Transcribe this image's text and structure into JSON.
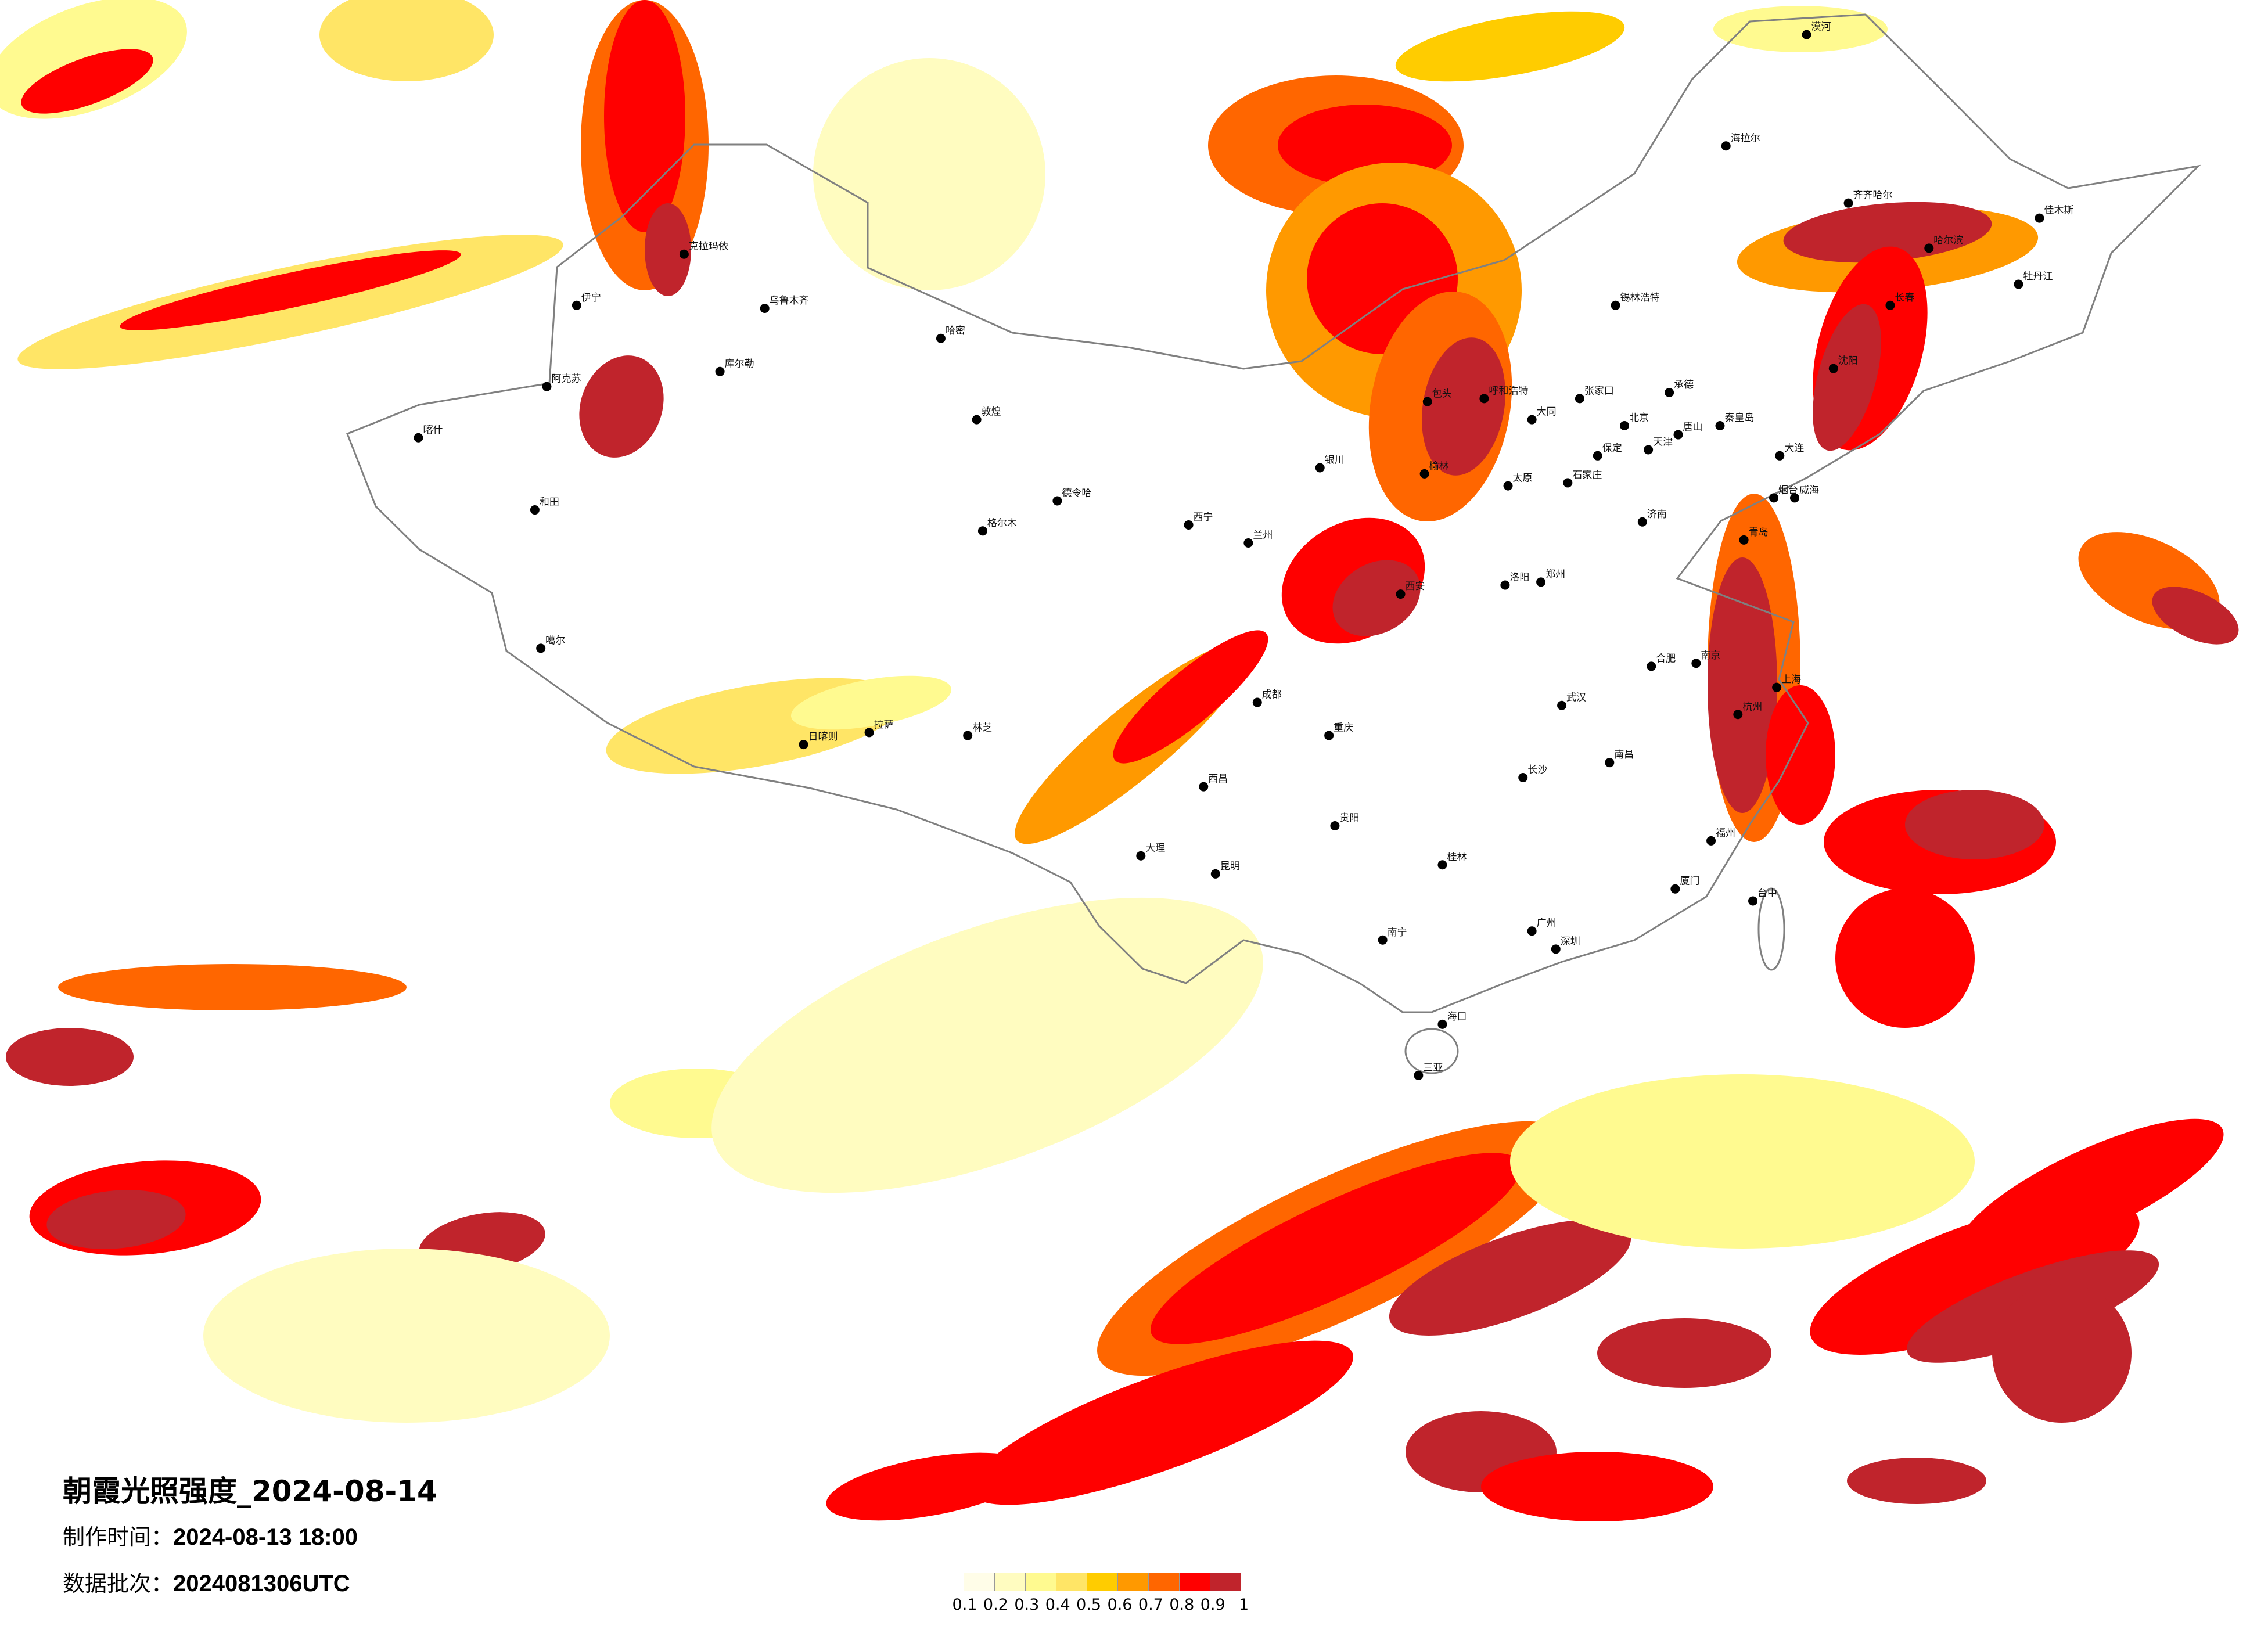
{
  "title": "朝霞光照强度_2024-08-14",
  "meta": {
    "made_label": "制作时间：",
    "made_value": "2024-08-13 18:00",
    "batch_label": "数据批次：",
    "batch_value": "2024081306UTC"
  },
  "legend": {
    "colors": [
      "#fffde8",
      "#fffcc0",
      "#fffa90",
      "#ffe566",
      "#ffcc00",
      "#ff9900",
      "#ff6600",
      "#ff0000",
      "#c0242c"
    ],
    "ticks": [
      "0.1",
      "0.2",
      "0.3",
      "0.4",
      "0.5",
      "0.6",
      "0.7",
      "0.8",
      "0.9",
      "1"
    ]
  },
  "border_color": "#808080",
  "cities": [
    {
      "name": "北京",
      "lon": 116.4,
      "lat": 39.9
    },
    {
      "name": "天津",
      "lon": 117.2,
      "lat": 39.1
    },
    {
      "name": "石家庄",
      "lon": 114.5,
      "lat": 38.0
    },
    {
      "name": "张家口",
      "lon": 114.9,
      "lat": 40.8
    },
    {
      "name": "保定",
      "lon": 115.5,
      "lat": 38.9
    },
    {
      "name": "唐山",
      "lon": 118.2,
      "lat": 39.6
    },
    {
      "name": "秦皇岛",
      "lon": 119.6,
      "lat": 39.9
    },
    {
      "name": "承德",
      "lon": 117.9,
      "lat": 41.0
    },
    {
      "name": "大同",
      "lon": 113.3,
      "lat": 40.1
    },
    {
      "name": "太原",
      "lon": 112.5,
      "lat": 37.9
    },
    {
      "name": "呼和浩特",
      "lon": 111.7,
      "lat": 40.8
    },
    {
      "name": "济南",
      "lon": 117.0,
      "lat": 36.7
    },
    {
      "name": "青岛",
      "lon": 120.4,
      "lat": 36.1
    },
    {
      "name": "烟台",
      "lon": 121.4,
      "lat": 37.5
    },
    {
      "name": "威海",
      "lon": 122.1,
      "lat": 37.5
    },
    {
      "name": "大连",
      "lon": 121.6,
      "lat": 38.9
    },
    {
      "name": "沈阳",
      "lon": 123.4,
      "lat": 41.8
    },
    {
      "name": "长春",
      "lon": 125.3,
      "lat": 43.9
    },
    {
      "name": "哈尔滨",
      "lon": 126.6,
      "lat": 45.8
    },
    {
      "name": "齐齐哈尔",
      "lon": 123.9,
      "lat": 47.3
    },
    {
      "name": "海拉尔",
      "lon": 119.8,
      "lat": 49.2
    },
    {
      "name": "漠河",
      "lon": 122.5,
      "lat": 52.9
    },
    {
      "name": "佳木斯",
      "lon": 130.3,
      "lat": 46.8
    },
    {
      "name": "牡丹江",
      "lon": 129.6,
      "lat": 44.6
    },
    {
      "name": "郑州",
      "lon": 113.6,
      "lat": 34.7
    },
    {
      "name": "洛阳",
      "lon": 112.4,
      "lat": 34.6
    },
    {
      "name": "西安",
      "lon": 108.9,
      "lat": 34.3
    },
    {
      "name": "兰州",
      "lon": 103.8,
      "lat": 36.0
    },
    {
      "name": "西宁",
      "lon": 101.8,
      "lat": 36.6
    },
    {
      "name": "银川",
      "lon": 106.2,
      "lat": 38.5
    },
    {
      "name": "武汉",
      "lon": 114.3,
      "lat": 30.6
    },
    {
      "name": "长沙",
      "lon": 113.0,
      "lat": 28.2
    },
    {
      "name": "南昌",
      "lon": 115.9,
      "lat": 28.7
    },
    {
      "name": "合肥",
      "lon": 117.3,
      "lat": 31.9
    },
    {
      "name": "南京",
      "lon": 118.8,
      "lat": 32.0
    },
    {
      "name": "上海",
      "lon": 121.5,
      "lat": 31.2
    },
    {
      "name": "杭州",
      "lon": 120.2,
      "lat": 30.3
    },
    {
      "name": "福州",
      "lon": 119.3,
      "lat": 26.1
    },
    {
      "name": "厦门",
      "lon": 118.1,
      "lat": 24.5
    },
    {
      "name": "台中",
      "lon": 120.7,
      "lat": 24.1
    },
    {
      "name": "广州",
      "lon": 113.3,
      "lat": 23.1
    },
    {
      "name": "深圳",
      "lon": 114.1,
      "lat": 22.5
    },
    {
      "name": "南宁",
      "lon": 108.3,
      "lat": 22.8
    },
    {
      "name": "桂林",
      "lon": 110.3,
      "lat": 25.3
    },
    {
      "name": "海口",
      "lon": 110.3,
      "lat": 20.0
    },
    {
      "name": "三亚",
      "lon": 109.5,
      "lat": 18.3
    },
    {
      "name": "贵阳",
      "lon": 106.7,
      "lat": 26.6
    },
    {
      "name": "昆明",
      "lon": 102.7,
      "lat": 25.0
    },
    {
      "name": "大理",
      "lon": 100.2,
      "lat": 25.6
    },
    {
      "name": "成都",
      "lon": 104.1,
      "lat": 30.7
    },
    {
      "name": "重庆",
      "lon": 106.5,
      "lat": 29.6
    },
    {
      "name": "西昌",
      "lon": 102.3,
      "lat": 27.9
    },
    {
      "name": "拉萨",
      "lon": 91.1,
      "lat": 29.7
    },
    {
      "name": "日喀则",
      "lon": 88.9,
      "lat": 29.3
    },
    {
      "name": "林芝",
      "lon": 94.4,
      "lat": 29.6
    },
    {
      "name": "格尔木",
      "lon": 94.9,
      "lat": 36.4
    },
    {
      "name": "德令哈",
      "lon": 97.4,
      "lat": 37.4
    },
    {
      "name": "敦煌",
      "lon": 94.7,
      "lat": 40.1
    },
    {
      "name": "哈密",
      "lon": 93.5,
      "lat": 42.8
    },
    {
      "name": "乌鲁木齐",
      "lon": 87.6,
      "lat": 43.8
    },
    {
      "name": "库尔勒",
      "lon": 86.1,
      "lat": 41.7
    },
    {
      "name": "克拉玛依",
      "lon": 84.9,
      "lat": 45.6
    },
    {
      "name": "伊宁",
      "lon": 81.3,
      "lat": 43.9
    },
    {
      "name": "阿克苏",
      "lon": 80.3,
      "lat": 41.2
    },
    {
      "name": "喀什",
      "lon": 76.0,
      "lat": 39.5
    },
    {
      "name": "和田",
      "lon": 79.9,
      "lat": 37.1
    },
    {
      "name": "噶尔",
      "lon": 80.1,
      "lat": 32.5
    },
    {
      "name": "锡林浩特",
      "lon": 116.1,
      "lat": 43.9
    },
    {
      "name": "包头",
      "lon": 109.8,
      "lat": 40.7
    },
    {
      "name": "榆林",
      "lon": 109.7,
      "lat": 38.3
    }
  ]
}
